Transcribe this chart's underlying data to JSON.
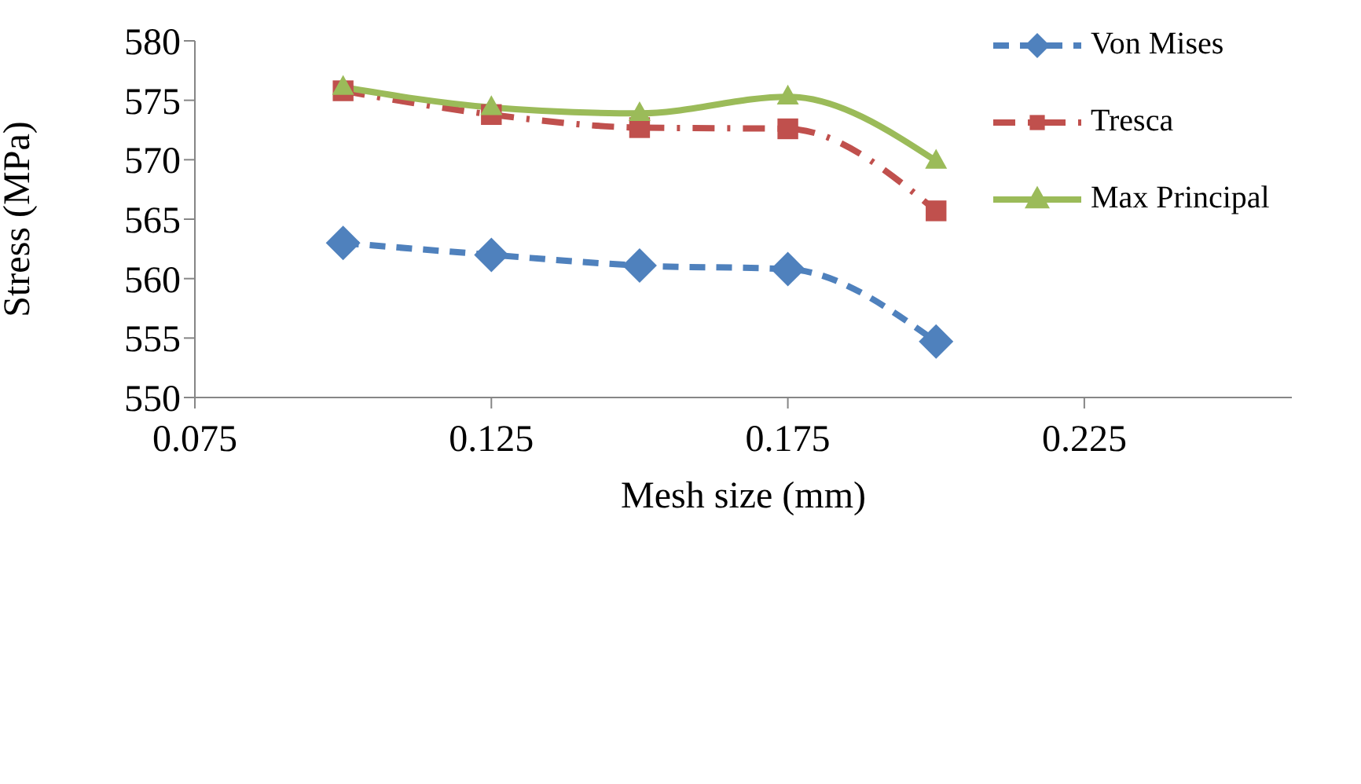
{
  "chart_data": {
    "type": "line",
    "xlabel": "Mesh size (mm)",
    "ylabel": "Stress (MPa)",
    "x": [
      0.1,
      0.125,
      0.15,
      0.175,
      0.2
    ],
    "series": [
      {
        "name": "Von Mises",
        "color": "#4f81bd",
        "marker": "diamond",
        "line_style": "dashed",
        "values": [
          563.0,
          562.0,
          561.1,
          560.8,
          554.7
        ]
      },
      {
        "name": "Tresca",
        "color": "#c0504d",
        "marker": "square",
        "line_style": "dashdot",
        "values": [
          575.8,
          573.8,
          572.7,
          572.6,
          565.7
        ]
      },
      {
        "name": "Max Principal",
        "color": "#9bbb59",
        "marker": "triangle",
        "line_style": "solid",
        "values": [
          576.1,
          574.4,
          573.9,
          575.3,
          569.9
        ]
      }
    ],
    "xlim": [
      0.075,
      0.26
    ],
    "xticks": [
      0.075,
      0.125,
      0.175,
      0.225
    ],
    "ylim": [
      550,
      580
    ],
    "yticks": [
      550,
      555,
      560,
      565,
      570,
      575,
      580
    ],
    "grid": false,
    "legend": "top right"
  }
}
